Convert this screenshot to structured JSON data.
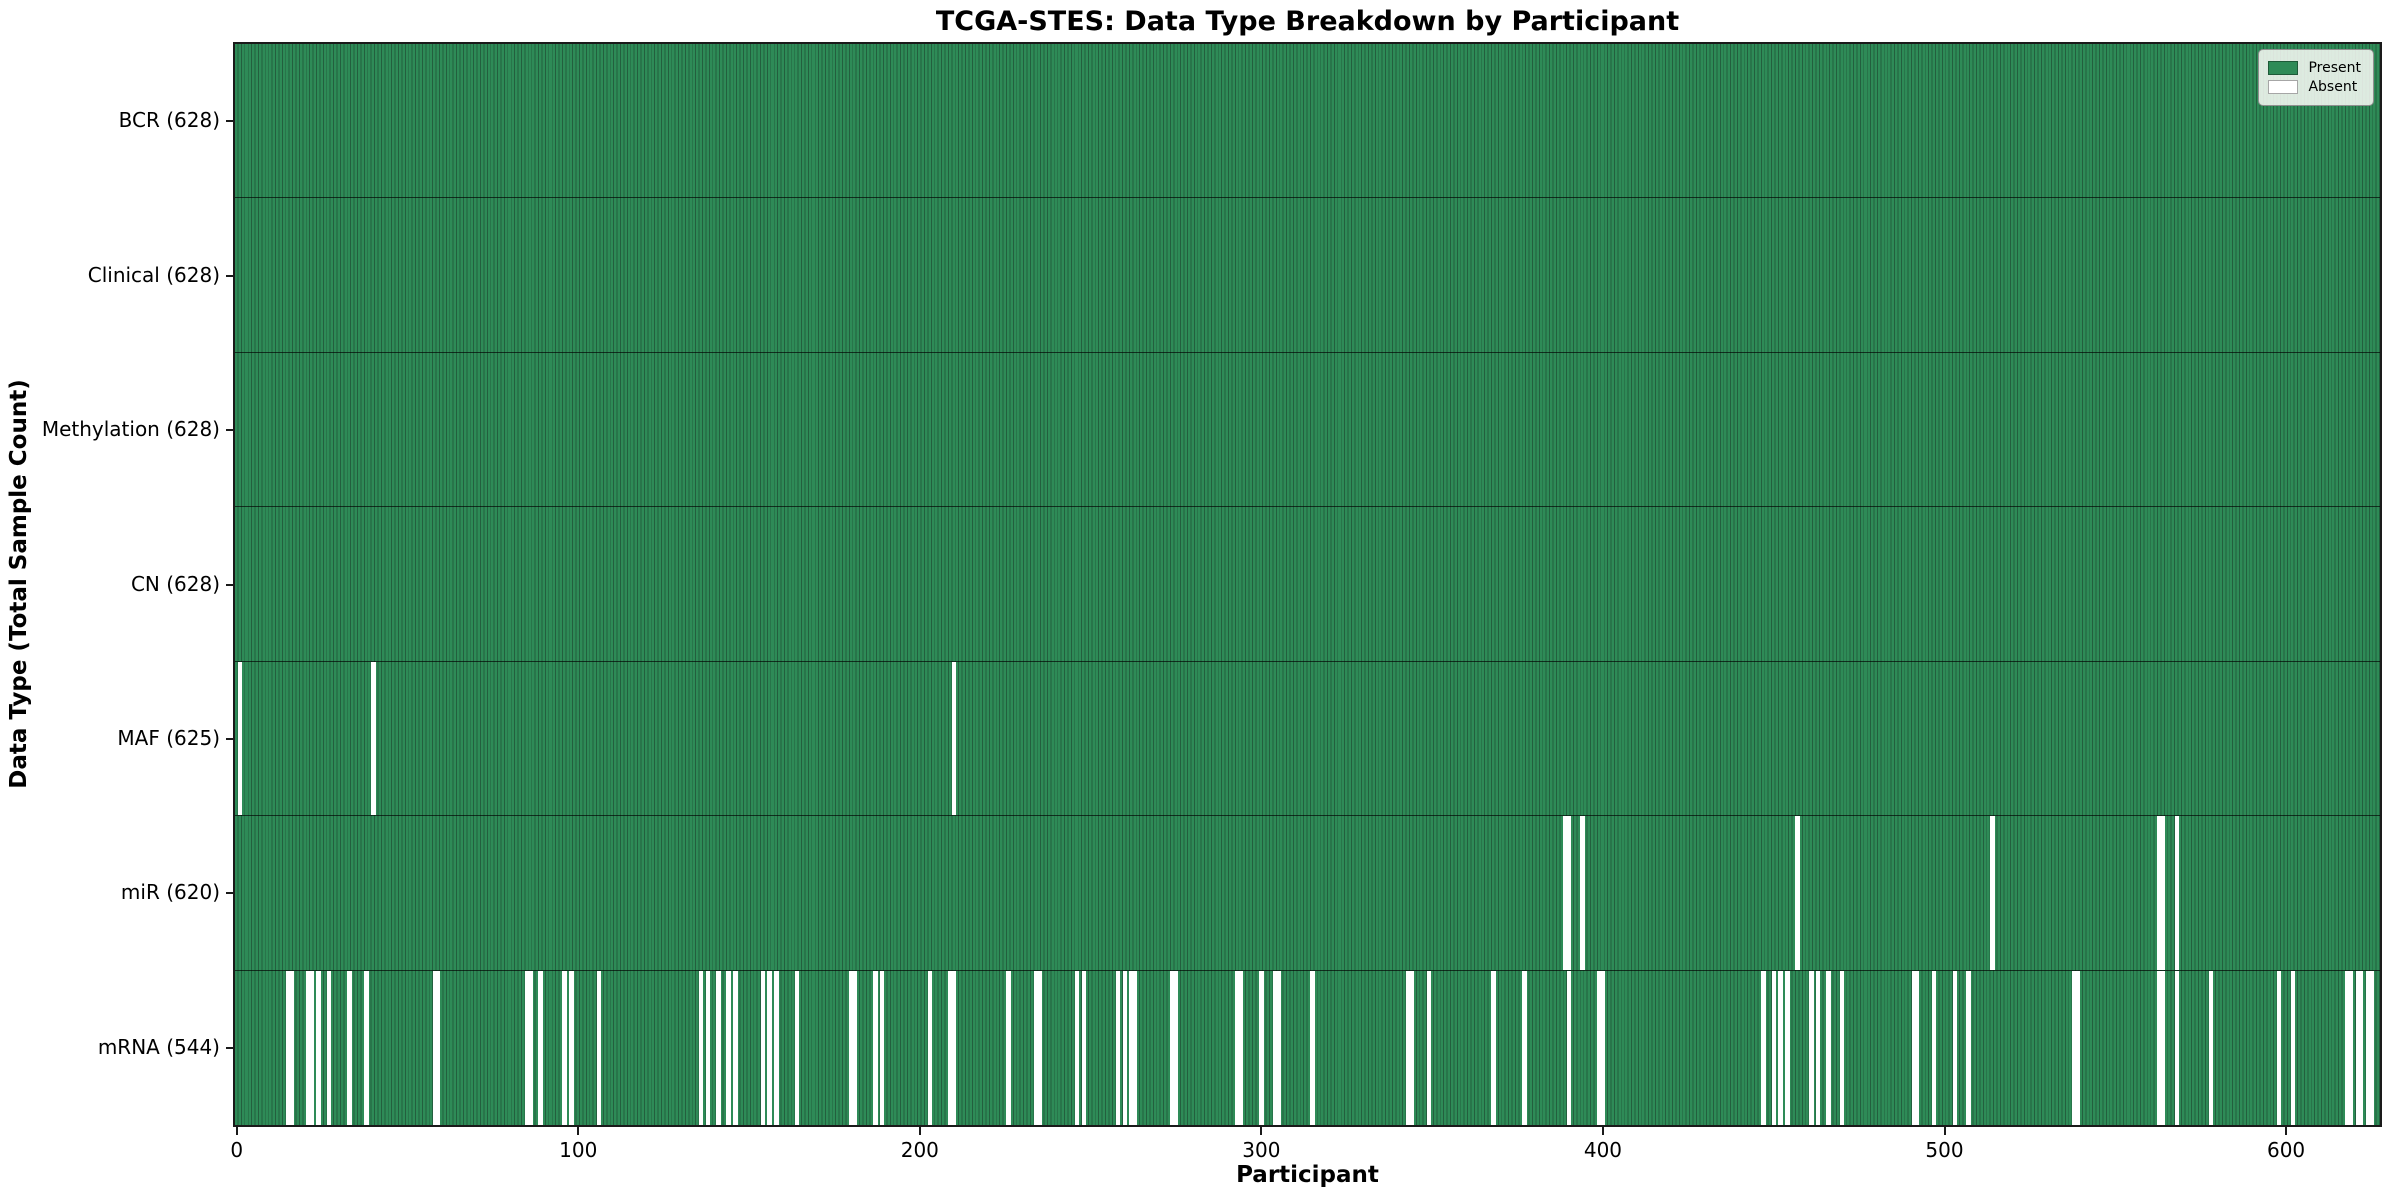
{
  "chart_data": {
    "type": "heatmap",
    "title": "TCGA-STES: Data Type Breakdown by Participant",
    "xlabel": "Participant",
    "ylabel": "Data Type (Total Sample Count)",
    "n_participants": 628,
    "x_ticks": [
      0,
      100,
      200,
      300,
      400,
      500,
      600
    ],
    "grid": false,
    "colors": {
      "present": "#2e8b57",
      "present_edge": "#235f3e",
      "absent": "#ffffff",
      "plot_border": "#1a1a1a"
    },
    "legend": {
      "position": "upper right",
      "entries": [
        {
          "label": "Present",
          "color": "#2e8b57"
        },
        {
          "label": "Absent",
          "color": "#ffffff"
        }
      ]
    },
    "rows": [
      {
        "name": "BCR",
        "label": "BCR (628)",
        "total": 628,
        "absent": []
      },
      {
        "name": "Clinical",
        "label": "Clinical (628)",
        "total": 628,
        "absent": []
      },
      {
        "name": "Methylation",
        "label": "Methylation (628)",
        "total": 628,
        "absent": []
      },
      {
        "name": "CN",
        "label": "CN (628)",
        "total": 628,
        "absent": []
      },
      {
        "name": "MAF",
        "label": "MAF (625)",
        "total": 625,
        "absent": [
          1,
          40,
          210
        ]
      },
      {
        "name": "miR",
        "label": "miR (620)",
        "total": 620,
        "absent": [
          389,
          390,
          394,
          457,
          514,
          563,
          564,
          568
        ]
      },
      {
        "name": "mRNA",
        "label": "mRNA (544)",
        "total": 544,
        "absent": [
          15,
          16,
          21,
          22,
          24,
          27,
          33,
          38,
          58,
          59,
          85,
          86,
          89,
          96,
          98,
          106,
          136,
          138,
          141,
          144,
          146,
          154,
          156,
          158,
          164,
          180,
          181,
          187,
          189,
          203,
          209,
          210,
          226,
          234,
          235,
          246,
          248,
          258,
          260,
          262,
          263,
          274,
          275,
          293,
          294,
          300,
          304,
          305,
          315,
          343,
          344,
          349,
          368,
          377,
          390,
          399,
          400,
          447,
          450,
          452,
          454,
          461,
          463,
          466,
          470,
          491,
          492,
          497,
          503,
          507,
          538,
          539,
          563,
          564,
          568,
          578,
          598,
          602,
          618,
          619,
          621,
          622,
          624,
          625
        ]
      }
    ]
  }
}
